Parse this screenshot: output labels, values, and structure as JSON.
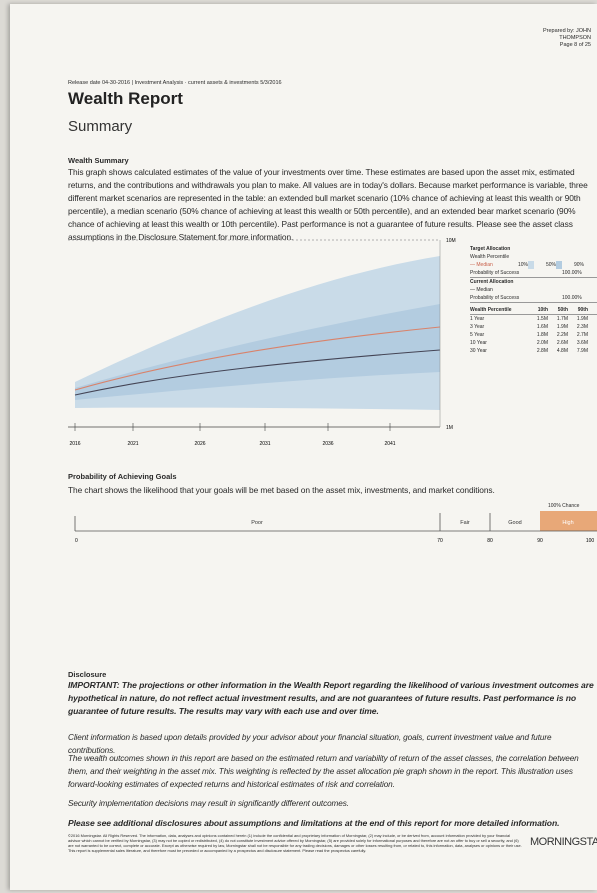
{
  "header": {
    "prepared_by": "Prepared by: JOHN",
    "prepared_name": "THOMPSON",
    "page": "Page 8 of 25",
    "release": "Release date 04-30-2016 | Investment Analysis · current assets & investments 5/3/2016",
    "title": "Wealth Report",
    "subtitle": "Summary"
  },
  "wealth_summary": {
    "heading": "Wealth Summary",
    "text": "This graph shows calculated estimates of the value of your investments over time. These estimates are based upon the asset mix, estimated returns, and the contributions and withdrawals you plan to make. All values are in today's dollars. Because market performance is variable, three different market scenarios are represented in the table: an extended bull market scenario (10% chance of achieving at least this wealth or 90th percentile), a median scenario (50% chance of achieving at least this wealth or 50th percentile), and an extended bear market scenario (90% chance of achieving at least this wealth or 10th percentile). Past performance is not a guarantee of future results. Please see the asset class assumptions in the Disclosure Statement for more information.",
    "chart": {
      "years": [
        "2016",
        "2021",
        "2026",
        "2031",
        "2036",
        "2041"
      ],
      "top_label": "10M",
      "bottom_label": "1M"
    },
    "legend": {
      "target": "Target Allocation",
      "percentile": "Wealth Percentile",
      "median": "— Median",
      "p10": "10%",
      "p50": "50%",
      "p90": "90%",
      "prob": "Probability of Success",
      "prob_value": "100.00%",
      "current": "Current Allocation",
      "current_median": "— Median",
      "current_prob": "Probability of Success",
      "current_prob_value": "100.00%"
    },
    "table": {
      "header": [
        "Wealth Percentile",
        "10th",
        "50th",
        "90th"
      ],
      "rows": [
        [
          "1 Year",
          "1.5M",
          "1.7M",
          "1.9M"
        ],
        [
          "3 Year",
          "1.6M",
          "1.9M",
          "2.3M"
        ],
        [
          "5 Year",
          "1.8M",
          "2.2M",
          "2.7M"
        ],
        [
          "10 Year",
          "2.0M",
          "2.6M",
          "3.6M"
        ],
        [
          "30 Year",
          "2.8M",
          "4.8M",
          "7.9M"
        ]
      ]
    }
  },
  "goals": {
    "heading": "Probability of Achieving Goals",
    "text": "The chart shows the likelihood that your goals will be met based on the asset mix, investments, and market conditions.",
    "chance": "100% Chance",
    "zones": [
      "Poor",
      "Fair",
      "Good",
      "High"
    ],
    "ticks": [
      "0",
      "70",
      "80",
      "90",
      "100"
    ]
  },
  "disclosure": {
    "heading": "Disclosure",
    "important": "IMPORTANT: The projections or other information in the Wealth Report regarding the likelihood of various investment outcomes are hypothetical in nature, do not reflect actual investment results, and are not guarantees of future results. Past performance is no guarantee of future results. The results may vary with each use and over time.",
    "client": "Client information is based upon details provided by your advisor about your financial situation, goals, current investment value and future contributions.",
    "outcomes": "The wealth outcomes shown in this report are based on the estimated return and variability of return of the asset classes, the correlation between them, and their weighting in the asset mix. This weighting is reflected by the asset allocation pie graph shown in the report. This illustration uses forward-looking estimates of expected returns and historical estimates of risk and correlation.",
    "security": "Security implementation decisions may result in significantly different outcomes.",
    "see_more": "Please see additional disclosures about assumptions and limitations at the end of this report for more detailed information.",
    "fine_print": "©2016 Morningstar. All Rights Reserved. The information, data, analyses and opinions contained herein (1) include the confidential and proprietary information of Morningstar, (2) may include, or be derived from, account information provided by your financial advisor which cannot be verified by Morningstar, (3) may not be copied or redistributed, (4) do not constitute investment advice offered by Morningstar, (5) are provided solely for informational purposes and therefore are not an offer to buy or sell a security, and (6) are not warranted to be correct, complete or accurate. Except as otherwise required by law, Morningstar shall not be responsible for any trading decisions, damages or other losses resulting from, or related to, this information, data, analyses or opinions or their use. This report is supplemental sales literature, and therefore must be preceded or accompanied by a prospectus and disclosure statement. Please read the prospectus carefully.",
    "logo": "MORNINGSTAR"
  }
}
